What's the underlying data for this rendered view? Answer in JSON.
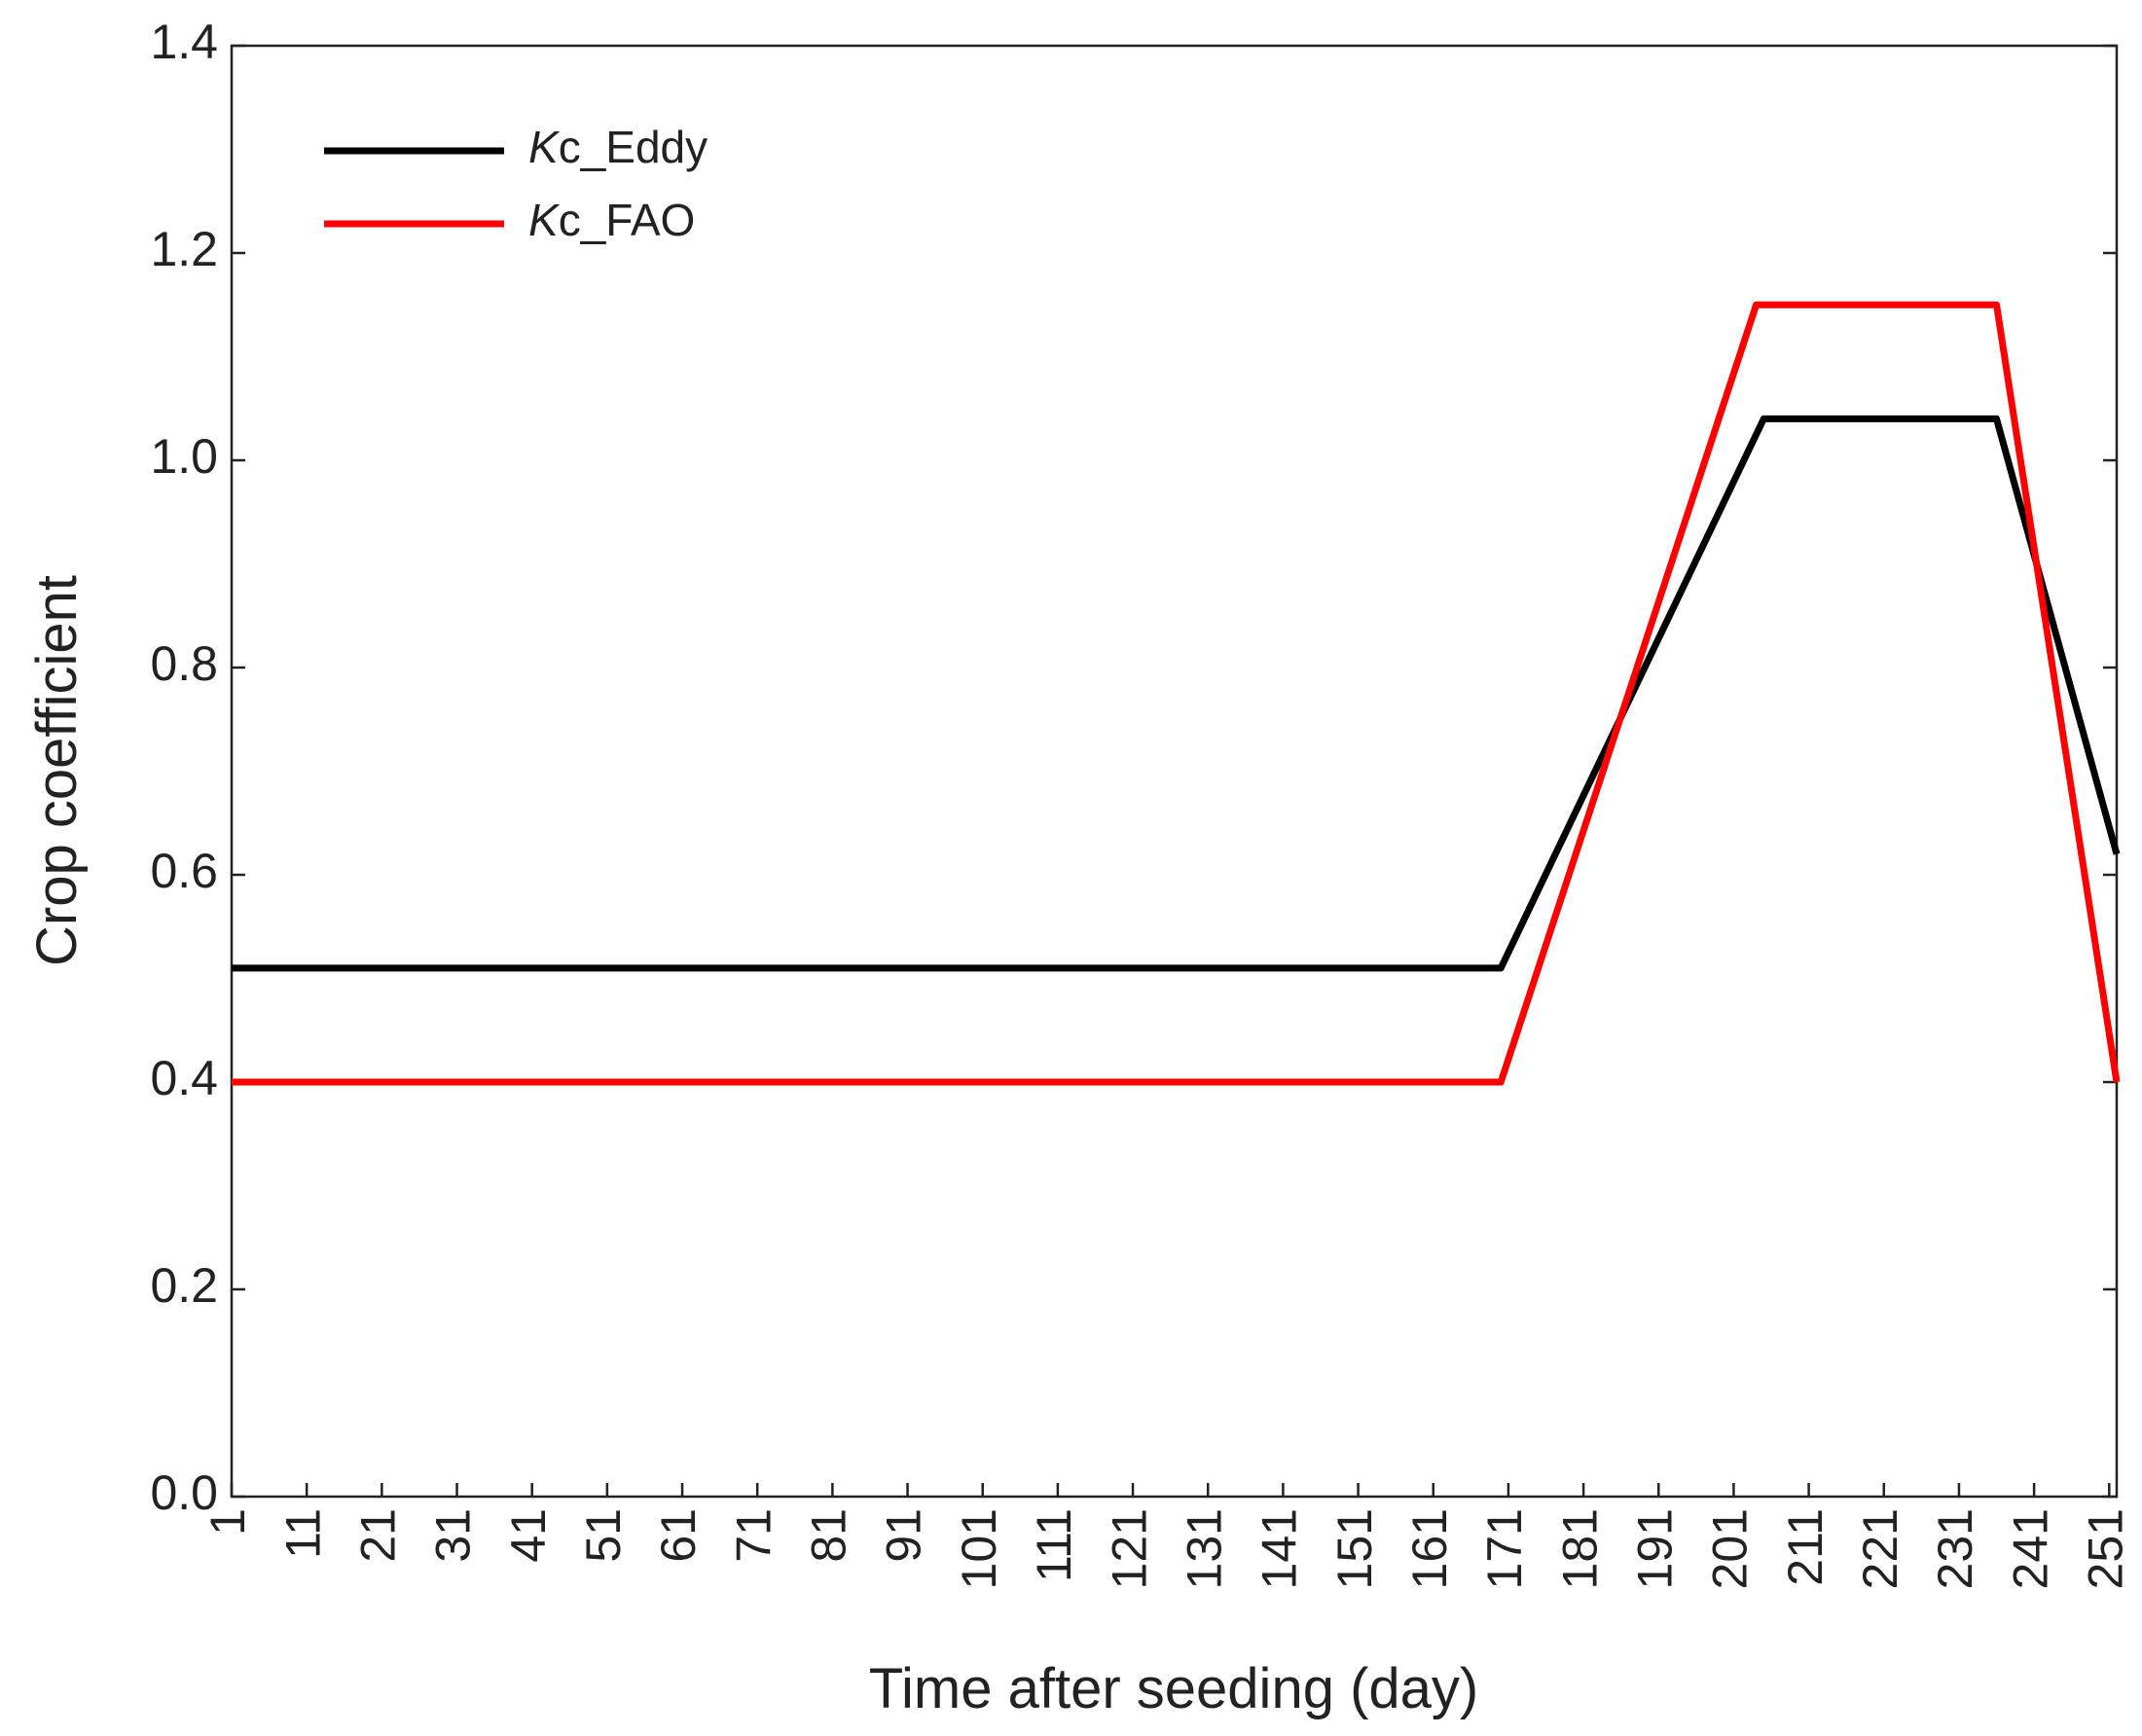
{
  "chart_data": {
    "type": "line",
    "x_label": "Time after seeding (day)",
    "y_label": "Crop coefficient",
    "series": [
      {
        "name": "Kc_Eddy",
        "color": "#000000",
        "x": [
          1,
          170,
          205,
          236,
          252
        ],
        "values": [
          0.51,
          0.51,
          1.04,
          1.04,
          0.62
        ]
      },
      {
        "name": "Kc_FAO",
        "color": "#ff0000",
        "x": [
          1,
          170,
          204,
          236,
          252
        ],
        "values": [
          0.4,
          0.4,
          1.15,
          1.15,
          0.4
        ]
      }
    ],
    "xlim": [
      1,
      252
    ],
    "xticks": [
      1,
      11,
      21,
      31,
      41,
      51,
      61,
      71,
      81,
      91,
      101,
      111,
      121,
      131,
      141,
      151,
      161,
      171,
      181,
      191,
      201,
      211,
      221,
      231,
      241,
      251
    ],
    "ylim": [
      0,
      1.4
    ],
    "yticks": [
      {
        "value": 0,
        "label": "0.0"
      },
      0.2,
      0.4,
      0.6,
      0.8,
      {
        "value": 1,
        "label": "1.0"
      },
      1.2,
      1.4
    ],
    "legend": "upper left",
    "grid": false
  }
}
